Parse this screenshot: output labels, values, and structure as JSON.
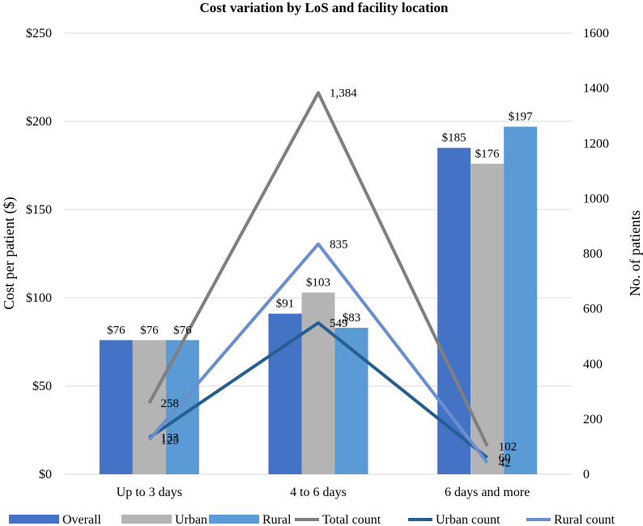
{
  "chart_data": {
    "type": "bar",
    "title": "Cost variation by LoS and facility location",
    "ylabel": "Cost per patient ($)",
    "y2label": "No. of patients",
    "categories": [
      "Up to 3 days",
      "4 to 6 days",
      "6 days and more"
    ],
    "ylim": [
      0,
      250
    ],
    "y2lim": [
      0,
      1600
    ],
    "yticks": [
      "$0",
      "$50",
      "$100",
      "$150",
      "$200",
      "$250"
    ],
    "y2ticks": [
      "0",
      "200",
      "400",
      "600",
      "800",
      "1000",
      "1200",
      "1400",
      "1600"
    ],
    "yticks_values": [
      0,
      50,
      100,
      150,
      200,
      250
    ],
    "y2ticks_values": [
      0,
      200,
      400,
      600,
      800,
      1000,
      1200,
      1400,
      1600
    ],
    "bar_series": [
      {
        "name": "Overall",
        "color": "#4472C4",
        "values": [
          76,
          91,
          185
        ],
        "labels": [
          "$76",
          "$91",
          "$185"
        ]
      },
      {
        "name": "Urban",
        "color": "#B4B4B4",
        "values": [
          76,
          103,
          176
        ],
        "labels": [
          "$76",
          "$103",
          "$176"
        ]
      },
      {
        "name": "Rural",
        "color": "#5B9BD5",
        "values": [
          76,
          83,
          197
        ],
        "labels": [
          "$76",
          "$83",
          "$197"
        ]
      }
    ],
    "line_series": [
      {
        "name": "Total count",
        "color": "#7F7F7F",
        "axis": "secondary",
        "values": [
          258,
          1384,
          102
        ],
        "labels": [
          "258",
          "1,384",
          "102"
        ]
      },
      {
        "name": "Urban count",
        "color": "#255E91",
        "axis": "secondary",
        "values": [
          133,
          549,
          60
        ],
        "labels": [
          "133",
          "549",
          "60"
        ]
      },
      {
        "name": "Rural count",
        "color": "#698ED0",
        "axis": "secondary",
        "values": [
          125,
          835,
          42
        ],
        "labels": [
          "125",
          "835",
          "42"
        ]
      }
    ],
    "legend": [
      "Overall",
      "Urban",
      "Rural",
      "Total count",
      "Urban count",
      "Rural count"
    ],
    "legend_position": "bottom",
    "grid": true
  }
}
